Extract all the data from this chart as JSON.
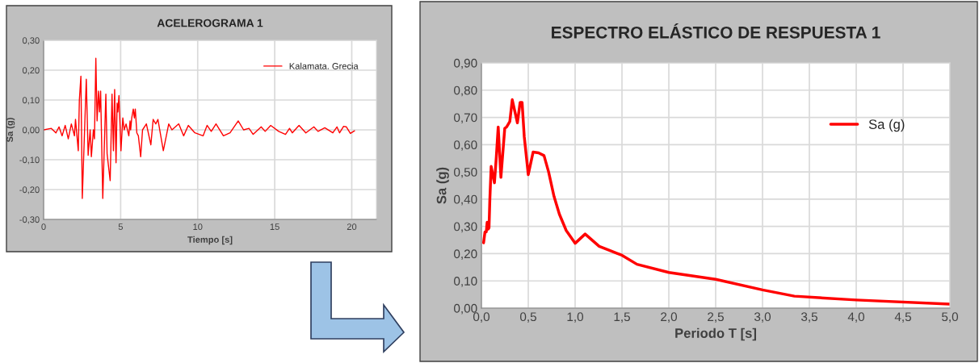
{
  "chart_data": [
    {
      "type": "line",
      "title": "ACELEROGRAMA 1",
      "xlabel": "Tiempo [s]",
      "ylabel": "Sa (g)",
      "legend": "top right",
      "grid": true,
      "marker": "none",
      "line_style": "solid",
      "xlim": [
        0,
        21.6
      ],
      "xticks": [
        0,
        5,
        10,
        15,
        20
      ],
      "ylim": [
        -0.3,
        0.3
      ],
      "yticks": [
        {
          "value": -0.3,
          "label": "-0,30"
        },
        {
          "value": -0.2,
          "label": "-0,20"
        },
        {
          "value": -0.1,
          "label": "-0,10"
        },
        {
          "value": 0,
          "label": "0,00"
        },
        {
          "value": 0.1,
          "label": "0,10"
        },
        {
          "value": 0.2,
          "label": "0,20"
        },
        {
          "value": 0.3,
          "label": "0,30"
        }
      ],
      "series": [
        {
          "name": "Kalamata. Grecia",
          "color": "#ff0000",
          "x": [
            0,
            0.5,
            0.8,
            1.0,
            1.2,
            1.4,
            1.6,
            1.8,
            2.0,
            2.07,
            2.25,
            2.32,
            2.42,
            2.51,
            2.77,
            2.89,
            3.02,
            3.1,
            3.23,
            3.3,
            3.39,
            3.47,
            3.56,
            3.63,
            3.7,
            3.84,
            4.04,
            4.12,
            4.23,
            4.32,
            4.44,
            4.53,
            4.61,
            4.7,
            4.77,
            4.82,
            4.89,
            5.02,
            5.14,
            5.23,
            5.35,
            5.53,
            5.61,
            5.65,
            5.72,
            5.82,
            5.89,
            5.95,
            6.05,
            6.15,
            6.3,
            6.42,
            6.67,
            6.96,
            7.11,
            7.28,
            7.42,
            7.77,
            8.12,
            8.33,
            8.77,
            9.09,
            9.39,
            9.82,
            10.35,
            10.61,
            10.88,
            11.19,
            11.67,
            12.1,
            12.63,
            12.98,
            13.33,
            13.6,
            14.12,
            14.38,
            14.74,
            15.26,
            15.7,
            15.96,
            16.14,
            16.49,
            16.58,
            17.02,
            17.54,
            17.81,
            18.25,
            18.77,
            19.04,
            19.21,
            19.47,
            19.65,
            19.91,
            20.18
          ],
          "values": [
            0,
            0.005,
            -0.01,
            0.01,
            -0.02,
            0.015,
            -0.03,
            0.02,
            -0.02,
            0.035,
            -0.07,
            0.1,
            0.18,
            -0.23,
            0.17,
            -0.085,
            0,
            -0.09,
            0,
            -0.03,
            0.24,
            0.03,
            0.13,
            0.06,
            0.13,
            -0.23,
            0.12,
            -0.08,
            -0.13,
            -0.17,
            0.12,
            -0.07,
            0.135,
            -0.11,
            0.09,
            0.06,
            0.115,
            -0.07,
            0.04,
            0,
            0.02,
            -0.02,
            0.03,
            0,
            0.04,
            0.07,
            0.04,
            0.07,
            -0.01,
            -0.02,
            -0.09,
            0,
            0.02,
            -0.05,
            0.035,
            0.02,
            0.035,
            -0.07,
            0.02,
            0,
            0.02,
            -0.02,
            0.015,
            -0.01,
            -0.02,
            0.015,
            -0.005,
            0.02,
            -0.02,
            -0.01,
            0.03,
            0,
            0.005,
            -0.015,
            0.01,
            -0.005,
            0.015,
            -0.005,
            -0.015,
            0.005,
            -0.01,
            0.01,
            0.015,
            -0.01,
            0.01,
            -0.005,
            0.007,
            -0.01,
            0.01,
            -0.01,
            0.012,
            0.01,
            -0.012,
            -0.003
          ]
        }
      ]
    },
    {
      "type": "line",
      "title": "ESPECTRO ELÁSTICO DE RESPUESTA 1",
      "xlabel": "Periodo T [s]",
      "ylabel": "Sa (g)",
      "legend": "top right",
      "grid": true,
      "marker": "none",
      "line_style": "solid",
      "xlim": [
        0,
        5
      ],
      "xticks": [
        {
          "value": 0,
          "label": "0,0"
        },
        {
          "value": 0.5,
          "label": "0,5"
        },
        {
          "value": 1,
          "label": "1,0"
        },
        {
          "value": 1.5,
          "label": "1,5"
        },
        {
          "value": 2,
          "label": "2,0"
        },
        {
          "value": 2.5,
          "label": "2,5"
        },
        {
          "value": 3,
          "label": "3,0"
        },
        {
          "value": 3.5,
          "label": "3,5"
        },
        {
          "value": 4,
          "label": "4,0"
        },
        {
          "value": 4.5,
          "label": "4,5"
        },
        {
          "value": 5,
          "label": "5,0"
        }
      ],
      "ylim": [
        0,
        0.9
      ],
      "yticks": [
        {
          "value": 0,
          "label": "0,00"
        },
        {
          "value": 0.1,
          "label": "0,10"
        },
        {
          "value": 0.2,
          "label": "0,20"
        },
        {
          "value": 0.3,
          "label": "0,30"
        },
        {
          "value": 0.4,
          "label": "0,40"
        },
        {
          "value": 0.5,
          "label": "0,50"
        },
        {
          "value": 0.6,
          "label": "0,60"
        },
        {
          "value": 0.7,
          "label": "0,70"
        },
        {
          "value": 0.8,
          "label": "0,80"
        },
        {
          "value": 0.9,
          "label": "0,90"
        }
      ],
      "series": [
        {
          "name": "Sa (g)",
          "color": "#ff0000",
          "x": [
            0.023,
            0.038,
            0.052,
            0.061,
            0.072,
            0.081,
            0.09,
            0.104,
            0.139,
            0.159,
            0.179,
            0.208,
            0.249,
            0.269,
            0.303,
            0.329,
            0.384,
            0.413,
            0.434,
            0.457,
            0.5,
            0.552,
            0.61,
            0.668,
            0.717,
            0.775,
            0.832,
            0.905,
            1.0,
            1.107,
            1.257,
            1.367,
            1.5,
            1.66,
            2.0,
            2.5,
            3.0,
            3.34,
            4.0,
            5.0
          ],
          "values": [
            0.24,
            0.28,
            0.28,
            0.315,
            0.29,
            0.295,
            0.4,
            0.52,
            0.46,
            0.555,
            0.665,
            0.48,
            0.66,
            0.665,
            0.685,
            0.765,
            0.68,
            0.755,
            0.755,
            0.63,
            0.49,
            0.573,
            0.57,
            0.56,
            0.5,
            0.41,
            0.345,
            0.285,
            0.238,
            0.272,
            0.227,
            0.212,
            0.194,
            0.161,
            0.131,
            0.106,
            0.067,
            0.044,
            0.03,
            0.015
          ]
        }
      ]
    }
  ]
}
